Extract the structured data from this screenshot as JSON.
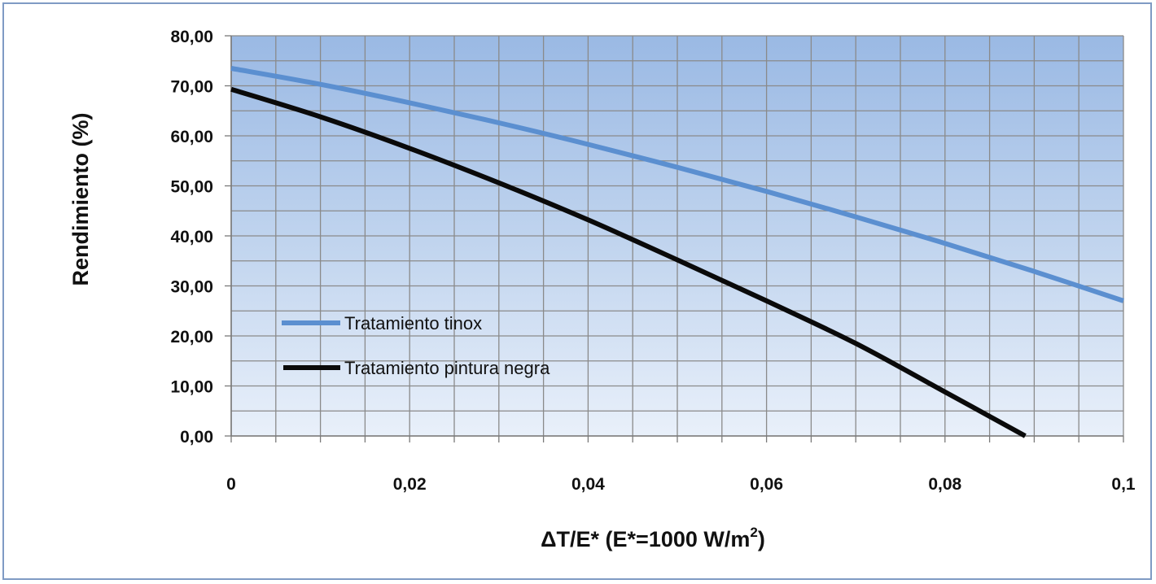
{
  "chart_data": {
    "type": "line",
    "xlabel": "ΔT/E*   (E*=1000 W/m",
    "xlabel_sup": "2",
    "xlabel_end": ")",
    "ylabel": "Rendimiento (%)",
    "xlim": [
      0,
      0.1
    ],
    "ylim": [
      0,
      80
    ],
    "x_ticks": [
      0,
      0.02,
      0.04,
      0.06,
      0.08,
      0.1
    ],
    "x_tick_labels": [
      "0",
      "0,02",
      "0,04",
      "0,06",
      "0,08",
      "0,1"
    ],
    "y_ticks": [
      0,
      10,
      20,
      30,
      40,
      50,
      60,
      70,
      80
    ],
    "y_tick_labels": [
      "0,00",
      "10,00",
      "20,00",
      "30,00",
      "40,00",
      "50,00",
      "60,00",
      "70,00",
      "80,00"
    ],
    "grid": true,
    "legend_position": "lower-left",
    "series": [
      {
        "name": "Tratamiento tinox",
        "color": "#5b8fd0",
        "x": [
          0,
          0.01,
          0.02,
          0.03,
          0.04,
          0.05,
          0.06,
          0.07,
          0.08,
          0.09,
          0.1
        ],
        "values": [
          73.5,
          70.3,
          66.6,
          62.6,
          58.3,
          53.7,
          48.9,
          43.8,
          38.5,
          32.9,
          27.0
        ]
      },
      {
        "name": "Tratamiento pintura negra",
        "color": "#0a0a0a",
        "x": [
          0,
          0.01,
          0.02,
          0.03,
          0.04,
          0.05,
          0.06,
          0.07,
          0.08,
          0.089
        ],
        "values": [
          69.3,
          63.8,
          57.5,
          50.6,
          43.2,
          35.2,
          27.0,
          18.5,
          8.8,
          0.0
        ]
      }
    ]
  }
}
